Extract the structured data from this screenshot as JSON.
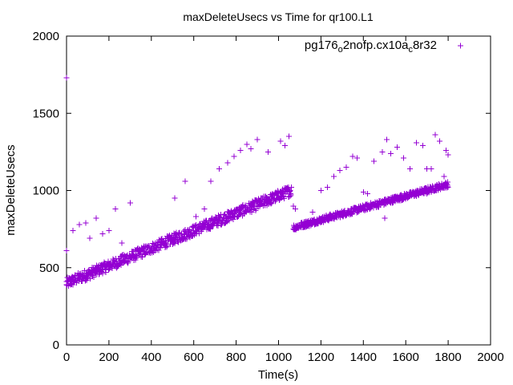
{
  "chart_data": {
    "type": "scatter",
    "title": "maxDeleteUsecs vs Time for qr100.L1",
    "xlabel": "Time(s)",
    "ylabel": "maxDeleteUsecs",
    "xlim": [
      0,
      2000
    ],
    "ylim": [
      0,
      2000
    ],
    "x_ticks": [
      "0",
      "200",
      "400",
      "600",
      "800",
      "1000",
      "1200",
      "1400",
      "1600",
      "1800",
      "2000"
    ],
    "y_ticks": [
      "0",
      "500",
      "1000",
      "1500",
      "2000"
    ],
    "grid": false,
    "legend_position": "top-right",
    "marker": "plus",
    "series": [
      {
        "legend_parts": [
          "pg176",
          "o",
          "2nofp.cx10a",
          "c",
          "8r32"
        ],
        "color": "#9400d3",
        "points": [
          [
            0,
            1730
          ],
          [
            0,
            610
          ],
          [
            0,
            390
          ],
          [
            30,
            740
          ],
          [
            60,
            780
          ],
          [
            90,
            790
          ],
          [
            110,
            690
          ],
          [
            140,
            820
          ],
          [
            170,
            720
          ],
          [
            200,
            740
          ],
          [
            230,
            880
          ],
          [
            260,
            660
          ],
          [
            300,
            920
          ],
          [
            560,
            1060
          ],
          [
            510,
            950
          ],
          [
            610,
            830
          ],
          [
            650,
            880
          ],
          [
            680,
            1060
          ],
          [
            720,
            1140
          ],
          [
            760,
            1180
          ],
          [
            790,
            1220
          ],
          [
            820,
            1260
          ],
          [
            850,
            1300
          ],
          [
            870,
            1270
          ],
          [
            900,
            1330
          ],
          [
            950,
            1250
          ],
          [
            1010,
            1320
          ],
          [
            1030,
            1290
          ],
          [
            1050,
            1350
          ],
          [
            1070,
            900
          ],
          [
            1080,
            880
          ],
          [
            1130,
            800
          ],
          [
            1160,
            860
          ],
          [
            1200,
            1000
          ],
          [
            1230,
            1020
          ],
          [
            1260,
            1090
          ],
          [
            1290,
            1130
          ],
          [
            1320,
            1150
          ],
          [
            1350,
            1220
          ],
          [
            1370,
            1210
          ],
          [
            1400,
            990
          ],
          [
            1420,
            980
          ],
          [
            1450,
            1190
          ],
          [
            1490,
            1250
          ],
          [
            1510,
            1330
          ],
          [
            1530,
            1240
          ],
          [
            1560,
            1280
          ],
          [
            1590,
            1210
          ],
          [
            1620,
            1140
          ],
          [
            1650,
            1310
          ],
          [
            1680,
            1290
          ],
          [
            1700,
            1140
          ],
          [
            1720,
            1140
          ],
          [
            1740,
            1360
          ],
          [
            1760,
            1320
          ],
          [
            1790,
            1260
          ],
          [
            1800,
            1230
          ],
          [
            1550,
            960
          ],
          [
            1700,
            980
          ],
          [
            1500,
            820
          ],
          [
            1780,
            1090
          ]
        ]
      }
    ],
    "trend_segments": [
      {
        "x_start": 0,
        "x_end": 1060,
        "y_start": 400,
        "y_end": 1000,
        "spread": 35
      },
      {
        "x_start": 1070,
        "x_end": 1800,
        "y_start": 760,
        "y_end": 1040,
        "spread": 20
      }
    ]
  }
}
